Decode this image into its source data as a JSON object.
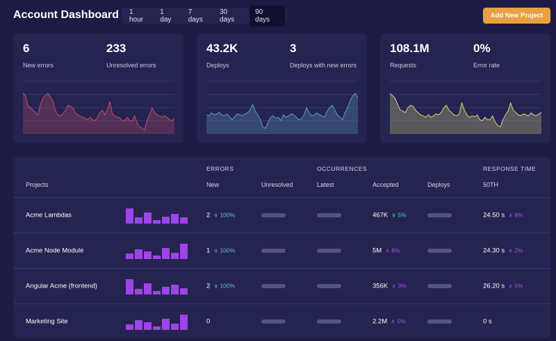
{
  "header": {
    "title": "Account Dashboard",
    "tabs": [
      "1 hour",
      "1 day",
      "7 days",
      "30 days",
      "90 days"
    ],
    "active_tab": "90 days",
    "add_button": "Add New Project"
  },
  "cards": [
    {
      "stats": [
        {
          "value": "6",
          "label": "New errors"
        },
        {
          "value": "233",
          "label": "Unresolved errors"
        }
      ],
      "color": "#c0506e"
    },
    {
      "stats": [
        {
          "value": "43.2K",
          "label": "Deploys"
        },
        {
          "value": "3",
          "label": "Deploys with new errors"
        }
      ],
      "color": "#5ea0c0"
    },
    {
      "stats": [
        {
          "value": "108.1M",
          "label": "Requests"
        },
        {
          "value": "0%",
          "label": "Error rate"
        }
      ],
      "color": "#d6d67a"
    }
  ],
  "chart_data": [
    {
      "type": "area",
      "values": [
        85,
        80,
        60,
        55,
        50,
        45,
        40,
        60,
        75,
        80,
        85,
        78,
        70,
        50,
        40,
        38,
        42,
        48,
        60,
        58,
        55,
        45,
        40,
        38,
        35,
        33,
        30,
        35,
        30,
        28,
        34,
        45,
        50,
        40,
        50,
        68,
        42,
        38,
        35,
        34,
        28,
        28,
        35,
        28,
        28,
        38,
        22,
        15,
        12,
        8,
        30,
        40,
        55,
        45,
        40,
        38,
        35,
        38,
        35,
        30,
        28,
        33
      ]
    },
    {
      "type": "area",
      "values": [
        40,
        38,
        44,
        40,
        42,
        45,
        40,
        38,
        42,
        36,
        30,
        36,
        42,
        40,
        38,
        42,
        44,
        50,
        62,
        48,
        40,
        30,
        15,
        12,
        25,
        35,
        38,
        33,
        35,
        28,
        40,
        35,
        38,
        42,
        40,
        35,
        30,
        32,
        40,
        55,
        45,
        38,
        40,
        44,
        40,
        38,
        35,
        48,
        55,
        60,
        50,
        40,
        35,
        30,
        45,
        55,
        70,
        80,
        85,
        75
      ]
    },
    {
      "type": "area",
      "values": [
        85,
        80,
        75,
        62,
        50,
        48,
        45,
        55,
        60,
        58,
        50,
        45,
        40,
        38,
        35,
        40,
        35,
        38,
        42,
        40,
        45,
        55,
        60,
        50,
        45,
        40,
        38,
        42,
        65,
        50,
        40,
        35,
        38,
        36,
        40,
        30,
        28,
        35,
        30,
        30,
        38,
        25,
        18,
        15,
        30,
        40,
        48,
        65,
        50,
        45,
        40,
        38,
        42,
        40,
        38,
        44,
        40,
        38,
        42,
        45
      ]
    }
  ],
  "table": {
    "group_headers": [
      "ERRORS",
      "OCCURRENCES",
      "RESPONSE TIME"
    ],
    "columns": [
      "Projects",
      "New",
      "Unresolved",
      "Latest",
      "Accepted",
      "Deploys",
      "50TH"
    ],
    "rows": [
      {
        "name": "Acme Lambdas",
        "bars": [
          22,
          9,
          16,
          5,
          10,
          14,
          9
        ],
        "new": "2",
        "new_trend": "down",
        "new_change": "100%",
        "accepted": "467K",
        "acc_trend": "down",
        "acc_change": "5%",
        "p50": "24.50 s",
        "p50_trend": "up",
        "p50_change": "8%"
      },
      {
        "name": "Acme Node Module",
        "bars": [
          8,
          14,
          11,
          5,
          16,
          9,
          22
        ],
        "new": "1",
        "new_trend": "down",
        "new_change": "100%",
        "accepted": "5M",
        "acc_trend": "up",
        "acc_change": "8%",
        "p50": "24.30 s",
        "p50_trend": "up",
        "p50_change": "2%"
      },
      {
        "name": "Angular Acme (frontend)",
        "bars": [
          22,
          8,
          16,
          5,
          11,
          14,
          9
        ],
        "new": "2",
        "new_trend": "down",
        "new_change": "100%",
        "accepted": "356K",
        "acc_trend": "up",
        "acc_change": "3%",
        "p50": "26.20 s",
        "p50_trend": "up",
        "p50_change": "5%"
      },
      {
        "name": "Marketing Site",
        "bars": [
          8,
          14,
          11,
          5,
          16,
          9,
          22
        ],
        "new": "0",
        "new_trend": null,
        "new_change": "",
        "accepted": "2.2M",
        "acc_trend": "up",
        "acc_change": "5%",
        "p50": "0 s",
        "p50_trend": null,
        "p50_change": ""
      }
    ]
  }
}
